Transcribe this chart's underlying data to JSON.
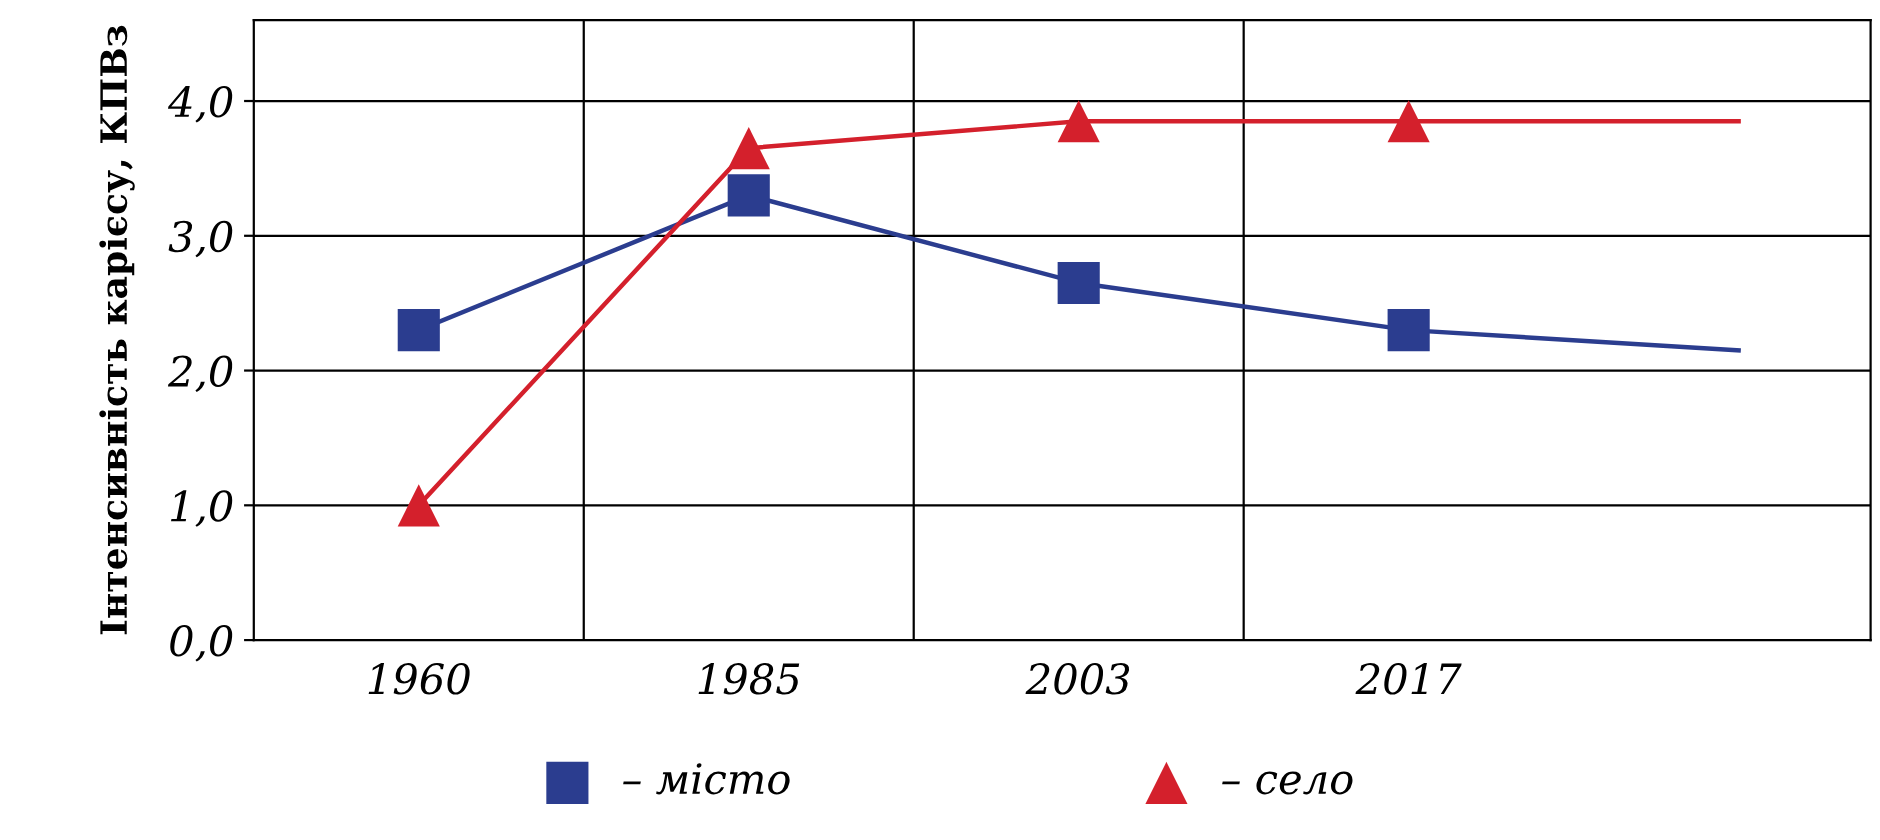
{
  "chart_data": {
    "type": "line",
    "ylabel": "Інтенсивність карієсу, КПВз",
    "categories": [
      "1960",
      "1985",
      "2003",
      "2017",
      null
    ],
    "series": [
      {
        "color": "#2b3d8f",
        "values": [
          2.3,
          3.3,
          2.65,
          2.3,
          2.15
        ]
      },
      {
        "color": "#d4202c",
        "values": [
          1.0,
          3.65,
          3.85,
          3.85,
          3.85
        ]
      },
      {
        "type": "scatter",
        "name": "– місто",
        "color": "#2b3d8f",
        "marker": "square",
        "values": [
          2.3,
          3.3,
          2.65,
          2.3,
          null
        ]
      },
      {
        "type": "scatter",
        "name": "– село",
        "color": "#d4202c",
        "marker": "triangle",
        "values": [
          1.0,
          3.65,
          3.85,
          3.85,
          null
        ]
      }
    ],
    "ylim": [
      0,
      4.6
    ],
    "yticks": [
      {
        "value": 0,
        "label": "0,0"
      },
      {
        "value": 1,
        "label": "1,0"
      },
      {
        "value": 2,
        "label": "2,0"
      },
      {
        "value": 3,
        "label": "3,0"
      },
      {
        "value": 4,
        "label": "4,0"
      }
    ],
    "grid": true,
    "legend": "bottom"
  }
}
